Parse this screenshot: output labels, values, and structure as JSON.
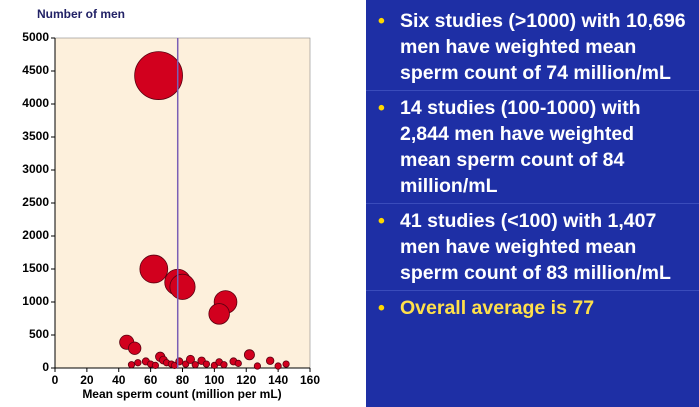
{
  "chart_data": {
    "type": "bubble",
    "ylabel": "Number of men",
    "xlabel": "Mean sperm count (million per mL)",
    "x": [
      65,
      62,
      77,
      80,
      107,
      103,
      45,
      50,
      48,
      52,
      57,
      60,
      63,
      66,
      68,
      70,
      73,
      75,
      78,
      82,
      85,
      88,
      92,
      95,
      100,
      103,
      106,
      112,
      115,
      122,
      127,
      135,
      140,
      145
    ],
    "values": [
      4430,
      1500,
      1300,
      1230,
      1000,
      820,
      390,
      300,
      50,
      80,
      100,
      60,
      40,
      170,
      120,
      80,
      60,
      40,
      100,
      60,
      130,
      50,
      110,
      60,
      40,
      90,
      50,
      100,
      70,
      200,
      30,
      110,
      30,
      60
    ],
    "color": "#d2001e",
    "background": "#fdf0dc",
    "vline": 77,
    "vline_color": "#7a5fb5",
    "xlim": [
      0,
      160
    ],
    "xticks": [
      0,
      20,
      40,
      60,
      80,
      100,
      120,
      140,
      160
    ],
    "ylim": [
      0,
      5000
    ],
    "yticks": [
      0,
      500,
      1000,
      1500,
      2000,
      2500,
      3000,
      3500,
      4000,
      4500,
      5000
    ]
  },
  "bullets": [
    "Six studies (>1000) with 10,696 men have weighted mean sperm count of 74 million/mL",
    "14 studies (100-1000) with 2,844 men have weighted mean sperm count of 84 million/mL",
    "41 studies (<100) with 1,407 men have weighted mean sperm count of 83 million/mL",
    "Overall average is 77"
  ]
}
